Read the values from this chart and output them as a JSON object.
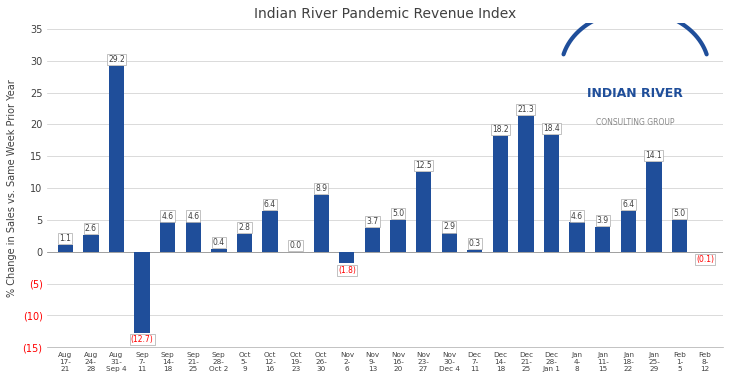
{
  "title": "Indian River Pandemic Revenue Index",
  "ylabel": "% Change in Sales vs. Same Week Prior Year",
  "categories": [
    "Aug\n17-\n21",
    "Aug\n24-\n28",
    "Aug\n31-\nSep 4",
    "Sep\n7-\n11",
    "Sep\n14-\n18",
    "Sep\n21-\n25",
    "Sep\n28-\nOct 2",
    "Oct\n5-\n9",
    "Oct\n12-\n16",
    "Oct\n19-\n23",
    "Oct\n26-\n30",
    "Nov\n2-\n6",
    "Nov\n9-\n13",
    "Nov\n16-\n20",
    "Nov\n23-\n27",
    "Nov\n30-\nDec 4",
    "Dec\n7-\n11",
    "Dec\n14-\n18",
    "Dec\n21-\n25",
    "Dec\n28-\nJan 1",
    "Jan\n4-\n8",
    "Jan\n11-\n15",
    "Jan\n18-\n22",
    "Jan\n25-\n29",
    "Feb\n1-\n5",
    "Feb\n8-\n12"
  ],
  "values": [
    1.1,
    2.6,
    29.2,
    -12.7,
    4.6,
    4.6,
    0.4,
    2.8,
    6.4,
    0.0,
    8.9,
    -1.8,
    3.7,
    5.0,
    12.5,
    2.9,
    0.3,
    18.2,
    21.3,
    18.4,
    4.6,
    3.9,
    6.4,
    14.1,
    5.0,
    -0.1
  ],
  "bar_color": "#1F4E9A",
  "negative_label_color": "#FF0000",
  "positive_label_color": "#404040",
  "ylim": [
    -15,
    35
  ],
  "yticks": [
    -15,
    -10,
    -5,
    0,
    5,
    10,
    15,
    20,
    25,
    30,
    35
  ],
  "background_color": "#FFFFFF",
  "grid_color": "#CCCCCC",
  "logo_name": "INDIAN RIVER",
  "logo_sub": "CONSULTING GROUP",
  "logo_name_color": "#1F4E9A",
  "logo_sub_color": "#888888",
  "arc_color": "#1F4E9A"
}
